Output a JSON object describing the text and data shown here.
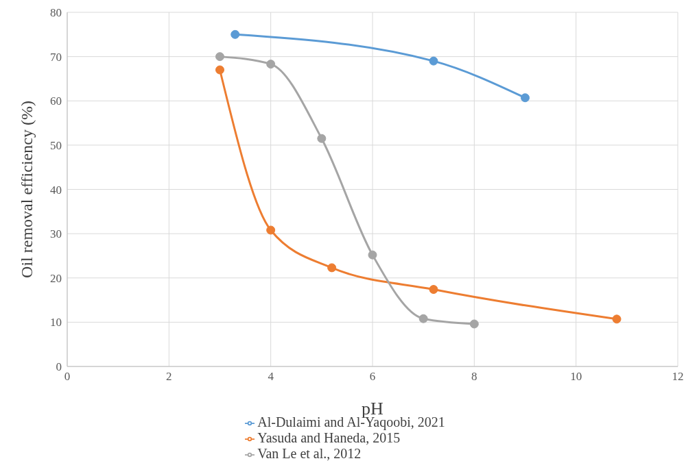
{
  "chart_data": {
    "type": "line",
    "xlabel": "pH",
    "ylabel": "Oil removal efficiency (%)",
    "xlim": [
      0,
      12
    ],
    "xticks": [
      0,
      2,
      4,
      6,
      8,
      10,
      12
    ],
    "ylim": [
      0,
      80
    ],
    "yticks": [
      0,
      10,
      20,
      30,
      40,
      50,
      60,
      70,
      80
    ],
    "grid": true,
    "legend": "bottom",
    "marker": "circle",
    "line_style": "solid",
    "series": [
      {
        "name": "Al-Dulaimi and Al-Yaqoobi, 2021",
        "color": "#5b9bd5",
        "x": [
          3.3,
          7.2,
          9.0
        ],
        "values": [
          75,
          69,
          60.7
        ]
      },
      {
        "name": "Yasuda and Haneda, 2015",
        "color": "#ed7d31",
        "x": [
          3,
          4,
          5.2,
          7.2,
          10.8
        ],
        "values": [
          67,
          30.8,
          22.3,
          17.4,
          10.7
        ]
      },
      {
        "name": "Van Le et al., 2012",
        "color": "#a5a5a5",
        "x": [
          3,
          4,
          5,
          6,
          7,
          8
        ],
        "values": [
          70,
          68.3,
          51.5,
          25.2,
          10.8,
          9.6
        ]
      }
    ]
  }
}
